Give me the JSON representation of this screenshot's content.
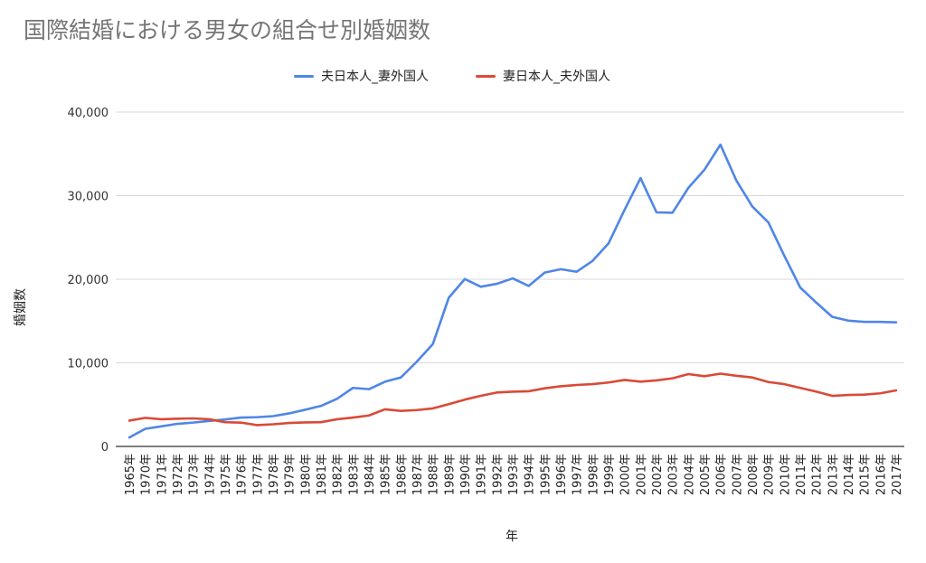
{
  "chart_data": {
    "type": "line",
    "title": "国際結婚における男女の組合せ別婚姻数",
    "xlabel": "年",
    "ylabel": "婚姻数",
    "ylim": [
      0,
      40000
    ],
    "yticks": [
      0,
      10000,
      20000,
      30000,
      40000
    ],
    "ytick_labels": [
      "0",
      "10,000",
      "20,000",
      "30,000",
      "40,000"
    ],
    "grid": true,
    "legend_position": "top",
    "categories": [
      "1965年",
      "1970年",
      "1971年",
      "1972年",
      "1973年",
      "1974年",
      "1975年",
      "1976年",
      "1977年",
      "1978年",
      "1979年",
      "1980年",
      "1981年",
      "1982年",
      "1983年",
      "1984年",
      "1985年",
      "1986年",
      "1987年",
      "1988年",
      "1989年",
      "1990年",
      "1991年",
      "1992年",
      "1993年",
      "1994年",
      "1995年",
      "1996年",
      "1997年",
      "1998年",
      "1999年",
      "2000年",
      "2001年",
      "2002年",
      "2003年",
      "2004年",
      "2005年",
      "2006年",
      "2007年",
      "2008年",
      "2009年",
      "2010年",
      "2011年",
      "2012年",
      "2013年",
      "2014年",
      "2015年",
      "2016年",
      "2017年"
    ],
    "series": [
      {
        "name": "夫日本人_妻外国人",
        "color": "#4f86e6",
        "values": [
          1067,
          2108,
          2400,
          2700,
          2850,
          3050,
          3222,
          3450,
          3500,
          3620,
          3950,
          4386,
          4850,
          5700,
          7000,
          6850,
          7738,
          8250,
          10150,
          12250,
          17800,
          20026,
          19100,
          19450,
          20100,
          19200,
          20800,
          21200,
          20900,
          22200,
          24300,
          28300,
          32100,
          28000,
          27950,
          30950,
          33100,
          36100,
          31800,
          28700,
          26800,
          22800,
          19000,
          17200,
          15500,
          15050,
          14900,
          14900,
          14850
        ]
      },
      {
        "name": "妻日本人_夫外国人",
        "color": "#d94a38",
        "values": [
          3089,
          3420,
          3250,
          3320,
          3350,
          3250,
          2900,
          2850,
          2550,
          2650,
          2800,
          2875,
          2900,
          3250,
          3450,
          3700,
          4443,
          4250,
          4350,
          4550,
          5050,
          5600,
          6050,
          6450,
          6550,
          6600,
          6950,
          7200,
          7350,
          7450,
          7650,
          7950,
          7750,
          7900,
          8150,
          8650,
          8400,
          8700,
          8450,
          8250,
          7700,
          7450,
          7000,
          6550,
          6050,
          6150,
          6200,
          6350,
          6700
        ]
      }
    ]
  }
}
